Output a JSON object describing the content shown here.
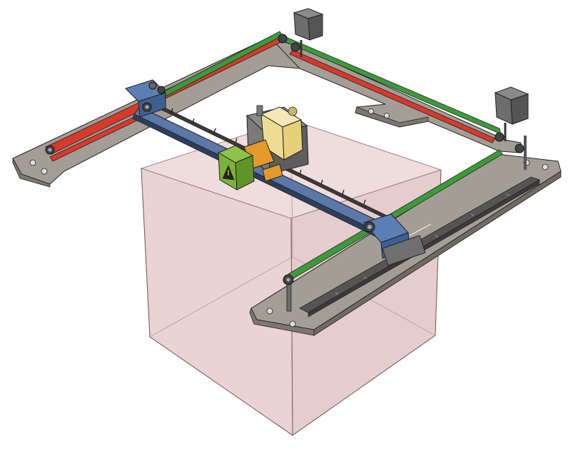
{
  "scene": {
    "description_visible_text": "",
    "colors": {
      "background": "#ffffff",
      "frame_plate": "#9a958c",
      "frame_plate_top": "#b3aea4",
      "build_volume_fill": "#e9d4d4",
      "build_volume_edge": "#8a6b6b",
      "belt_red": "#d63a2c",
      "belt_green": "#3d9a3a",
      "belt_blue": "#4b6fa5",
      "motor_body": "#6d6d6d",
      "carriage_blue": "#5b7fb5",
      "hotend_yellow": "#f1e3a6",
      "fan_shroud_green": "#7ab33a",
      "hotend_orange": "#e49a2a",
      "rail_dark": "#4a4a4a"
    },
    "components": [
      "frame-plate-left",
      "frame-plate-back",
      "frame-plate-right",
      "build-volume-cube",
      "x-gantry-rail",
      "y-rail-right",
      "stepper-motor-back",
      "stepper-motor-right",
      "belt-red",
      "belt-green",
      "belt-blue",
      "toolhead",
      "fan-shroud",
      "carriage-left",
      "carriage-right"
    ]
  }
}
